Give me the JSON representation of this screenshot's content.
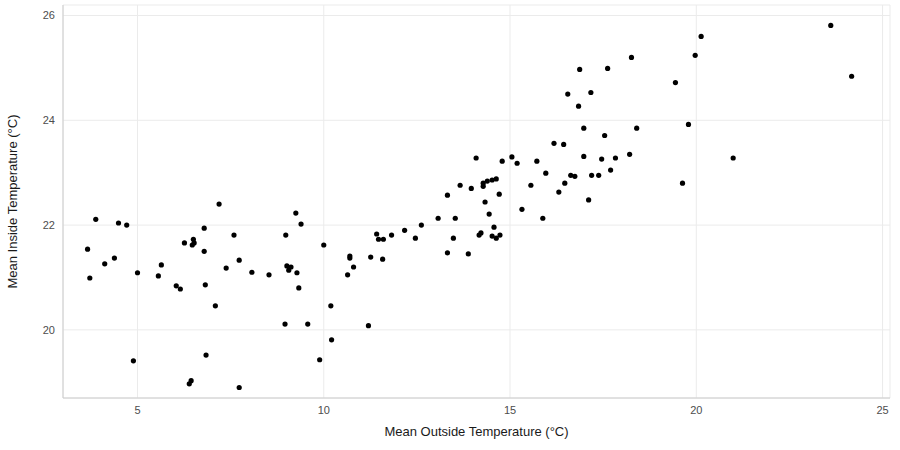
{
  "chart_data": {
    "type": "scatter",
    "x_label": "Mean Outside Temperature (°C)",
    "y_label": "Mean Inside Temperature (°C)",
    "x": [
      3.66,
      3.72,
      3.88,
      4.12,
      4.38,
      4.49,
      4.71,
      4.89,
      5.0,
      5.56,
      5.64,
      6.04,
      6.15,
      6.26,
      6.44,
      6.39,
      6.5,
      6.52,
      6.47,
      6.79,
      6.79,
      6.82,
      6.84,
      7.09,
      7.19,
      7.38,
      7.59,
      7.73,
      7.73,
      8.07,
      8.53,
      8.96,
      8.98,
      9.01,
      9.06,
      9.12,
      9.25,
      9.28,
      9.33,
      9.39,
      9.57,
      9.89,
      10.0,
      10.19,
      10.21,
      10.64,
      10.7,
      10.7,
      10.8,
      11.2,
      11.26,
      11.42,
      11.47,
      11.6,
      11.58,
      11.82,
      12.17,
      12.46,
      12.62,
      13.07,
      13.32,
      13.32,
      13.48,
      13.53,
      13.66,
      13.88,
      13.96,
      14.09,
      14.17,
      14.22,
      14.28,
      14.28,
      14.33,
      14.39,
      14.44,
      14.52,
      14.52,
      14.57,
      14.63,
      14.63,
      14.71,
      14.73,
      14.79,
      15.05,
      15.19,
      15.32,
      15.56,
      15.72,
      15.88,
      15.96,
      16.18,
      16.31,
      16.44,
      16.47,
      16.55,
      16.63,
      16.74,
      16.84,
      16.87,
      16.98,
      16.98,
      17.11,
      17.17,
      17.19,
      17.38,
      17.46,
      17.54,
      17.62,
      17.7,
      17.83,
      18.21,
      18.26,
      18.4,
      19.44,
      19.63,
      19.79,
      19.97,
      20.13,
      20.99,
      23.61,
      24.17
    ],
    "values": [
      21.54,
      20.99,
      22.11,
      21.26,
      21.37,
      22.04,
      22.0,
      19.41,
      21.09,
      21.03,
      21.24,
      20.84,
      20.78,
      21.66,
      19.03,
      18.97,
      21.73,
      21.66,
      21.62,
      21.94,
      21.5,
      20.86,
      19.52,
      20.46,
      22.4,
      21.18,
      21.81,
      21.33,
      18.9,
      21.1,
      21.05,
      20.11,
      21.81,
      21.22,
      21.14,
      21.2,
      22.23,
      21.09,
      20.8,
      22.02,
      20.11,
      19.43,
      21.62,
      20.46,
      19.81,
      21.05,
      21.37,
      21.41,
      21.2,
      20.08,
      21.39,
      21.83,
      21.73,
      21.73,
      21.35,
      21.81,
      21.9,
      21.75,
      22.0,
      22.13,
      22.57,
      21.47,
      21.75,
      22.13,
      22.76,
      21.45,
      22.7,
      23.28,
      21.81,
      21.85,
      22.8,
      22.74,
      22.44,
      22.84,
      22.21,
      22.86,
      21.79,
      21.96,
      22.88,
      21.75,
      22.59,
      21.81,
      23.22,
      23.3,
      23.18,
      22.3,
      22.76,
      23.22,
      22.13,
      22.99,
      23.56,
      22.63,
      23.54,
      22.8,
      24.5,
      22.95,
      22.93,
      24.27,
      24.97,
      23.31,
      23.85,
      22.48,
      24.53,
      22.95,
      22.95,
      23.26,
      23.71,
      24.99,
      23.05,
      23.28,
      23.35,
      25.2,
      23.85,
      24.72,
      22.8,
      23.92,
      25.24,
      25.6,
      23.28,
      25.81,
      24.84
    ],
    "color": "#000000",
    "marker": "circle",
    "xlim": [
      3,
      25.2
    ],
    "xticks": [
      5,
      10,
      15,
      20,
      25
    ],
    "ylim": [
      18.7,
      26.2
    ],
    "yticks": [
      20,
      22,
      24,
      26
    ],
    "grid": true
  }
}
